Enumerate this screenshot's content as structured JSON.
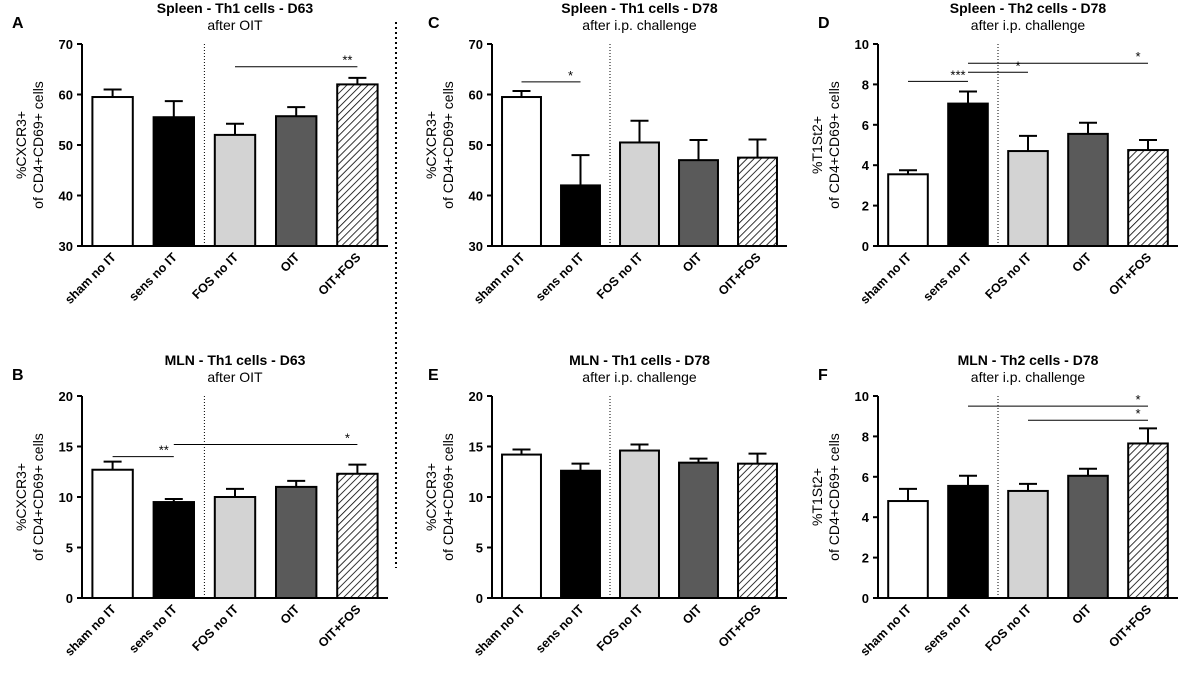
{
  "figure": {
    "divider_style": "dotted"
  },
  "colors": {
    "sham": "#ffffff",
    "sens": "#000000",
    "fos": "#d3d3d3",
    "oit": "#5a5a5a",
    "oitfos": "hatched",
    "axis": "#000000"
  },
  "chart_data": [
    {
      "panel": "A",
      "type": "bar",
      "title": "Spleen - Th1 cells - D63",
      "subtitle": "after OIT",
      "ylabel_line1": "%CXCR3+",
      "ylabel_line2": "of CD4+CD69+ cells",
      "ylim": [
        30,
        70
      ],
      "yticks": [
        30,
        40,
        50,
        60,
        70
      ],
      "categories": [
        "sham no IT",
        "sens no IT",
        "FOS no IT",
        "OIT",
        "OIT+FOS"
      ],
      "values": [
        59.5,
        55.5,
        52,
        55.7,
        62
      ],
      "errors": [
        1.5,
        3.2,
        2.2,
        1.8,
        1.3
      ],
      "significance": [
        {
          "from": 2,
          "to": 4,
          "level": 65.5,
          "label": "**"
        }
      ]
    },
    {
      "panel": "B",
      "type": "bar",
      "title": "MLN - Th1 cells - D63",
      "subtitle": "after OIT",
      "ylabel_line1": "%CXCR3+",
      "ylabel_line2": "of CD4+CD69+ cells",
      "ylim": [
        0,
        20
      ],
      "yticks": [
        0,
        5,
        10,
        15,
        20
      ],
      "categories": [
        "sham no IT",
        "sens no IT",
        "FOS no IT",
        "OIT",
        "OIT+FOS"
      ],
      "values": [
        12.7,
        9.5,
        10,
        11,
        12.3
      ],
      "errors": [
        0.8,
        0.3,
        0.8,
        0.6,
        0.9
      ],
      "significance": [
        {
          "from": 0,
          "to": 1,
          "level": 14,
          "label": "**"
        },
        {
          "from": 1,
          "to": 4,
          "level": 15.2,
          "label": "*"
        }
      ]
    },
    {
      "panel": "C",
      "type": "bar",
      "title": "Spleen - Th1 cells - D78",
      "subtitle": "after i.p. challenge",
      "ylabel_line1": "%CXCR3+",
      "ylabel_line2": "of CD4+CD69+ cells",
      "ylim": [
        30,
        70
      ],
      "yticks": [
        30,
        40,
        50,
        60,
        70
      ],
      "categories": [
        "sham no IT",
        "sens no IT",
        "FOS no IT",
        "OIT",
        "OIT+FOS"
      ],
      "values": [
        59.5,
        42,
        50.5,
        47,
        47.5
      ],
      "errors": [
        1.2,
        6,
        4.3,
        4,
        3.6
      ],
      "significance": [
        {
          "from": 0,
          "to": 1,
          "level": 62.5,
          "label": "*"
        }
      ]
    },
    {
      "panel": "D",
      "type": "bar",
      "title": "Spleen - Th2 cells - D78",
      "subtitle": "after i.p. challenge",
      "ylabel_line1": "%T1St2+",
      "ylabel_line2": "of CD4+CD69+ cells",
      "ylim": [
        0,
        10
      ],
      "yticks": [
        0,
        2,
        4,
        6,
        8,
        10
      ],
      "categories": [
        "sham no IT",
        "sens no IT",
        "FOS no IT",
        "OIT",
        "OIT+FOS"
      ],
      "values": [
        3.55,
        7.05,
        4.7,
        5.55,
        4.75
      ],
      "errors": [
        0.2,
        0.6,
        0.75,
        0.55,
        0.5
      ],
      "significance": [
        {
          "from": 0,
          "to": 1,
          "level": 8.15,
          "label": "***"
        },
        {
          "from": 1,
          "to": 2,
          "level": 8.6,
          "label": "*"
        },
        {
          "from": 1,
          "to": 4,
          "level": 9.05,
          "label": "*"
        }
      ]
    },
    {
      "panel": "E",
      "type": "bar",
      "title": "MLN - Th1 cells - D78",
      "subtitle": "after i.p. challenge",
      "ylabel_line1": "%CXCR3+",
      "ylabel_line2": "of CD4+CD69+ cells",
      "ylim": [
        0,
        20
      ],
      "yticks": [
        0,
        5,
        10,
        15,
        20
      ],
      "categories": [
        "sham no IT",
        "sens no IT",
        "FOS no IT",
        "OIT",
        "OIT+FOS"
      ],
      "values": [
        14.2,
        12.6,
        14.6,
        13.4,
        13.3
      ],
      "errors": [
        0.5,
        0.7,
        0.6,
        0.4,
        1
      ],
      "significance": []
    },
    {
      "panel": "F",
      "type": "bar",
      "title": "MLN - Th2 cells - D78",
      "subtitle": "after i.p. challenge",
      "ylabel_line1": "%T1St2+",
      "ylabel_line2": "of CD4+CD69+ cells",
      "ylim": [
        0,
        10
      ],
      "yticks": [
        0,
        2,
        4,
        6,
        8,
        10
      ],
      "categories": [
        "sham no IT",
        "sens no IT",
        "FOS no IT",
        "OIT",
        "OIT+FOS"
      ],
      "values": [
        4.8,
        5.55,
        5.3,
        6.05,
        7.65
      ],
      "errors": [
        0.6,
        0.5,
        0.35,
        0.35,
        0.75
      ],
      "significance": [
        {
          "from": 1,
          "to": 4,
          "level": 9.5,
          "label": "*"
        },
        {
          "from": 2,
          "to": 4,
          "level": 8.8,
          "label": "*"
        }
      ]
    }
  ]
}
